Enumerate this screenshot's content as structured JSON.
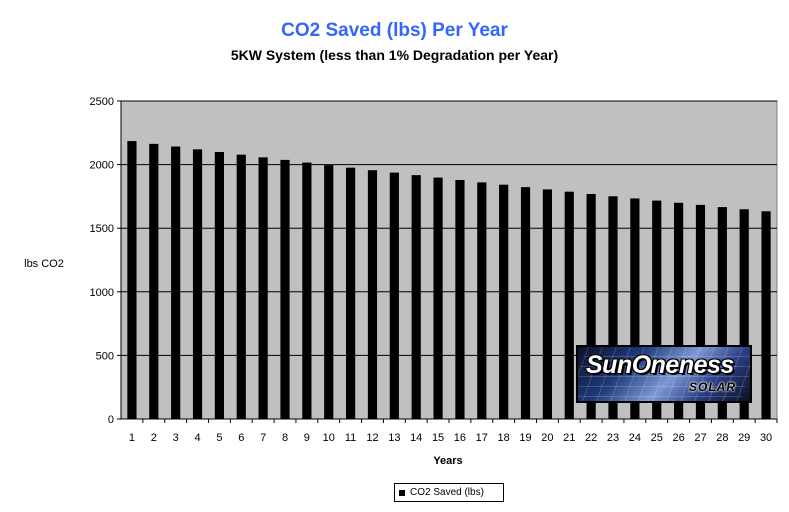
{
  "colors": {
    "title": "#3366ff",
    "plot_background": "#c0c0c0",
    "bar": "#000000",
    "gridline": "#000000"
  },
  "logo": {
    "text": "SunOneness",
    "subtext": "SOLAR"
  },
  "chart_data": {
    "type": "bar",
    "title": "CO2 Saved (lbs) Per Year",
    "subtitle": "5KW System (less than 1% Degradation per Year)",
    "xlabel": "Years",
    "ylabel": "lbs CO2",
    "ylim": [
      0,
      2500
    ],
    "yticks": [
      0,
      500,
      1000,
      1500,
      2000,
      2500
    ],
    "grid": "horizontal",
    "legend_position": "bottom",
    "categories": [
      "1",
      "2",
      "3",
      "4",
      "5",
      "6",
      "7",
      "8",
      "9",
      "10",
      "11",
      "12",
      "13",
      "14",
      "15",
      "16",
      "17",
      "18",
      "19",
      "20",
      "21",
      "22",
      "23",
      "24",
      "25",
      "26",
      "27",
      "28",
      "29",
      "30"
    ],
    "series": [
      {
        "name": "CO2 Saved (lbs)",
        "values": [
          2185,
          2163,
          2142,
          2120,
          2099,
          2078,
          2057,
          2037,
          2016,
          1996,
          1976,
          1956,
          1937,
          1917,
          1898,
          1879,
          1860,
          1842,
          1823,
          1805,
          1787,
          1769,
          1751,
          1734,
          1717,
          1700,
          1683,
          1666,
          1649,
          1633
        ]
      }
    ]
  }
}
